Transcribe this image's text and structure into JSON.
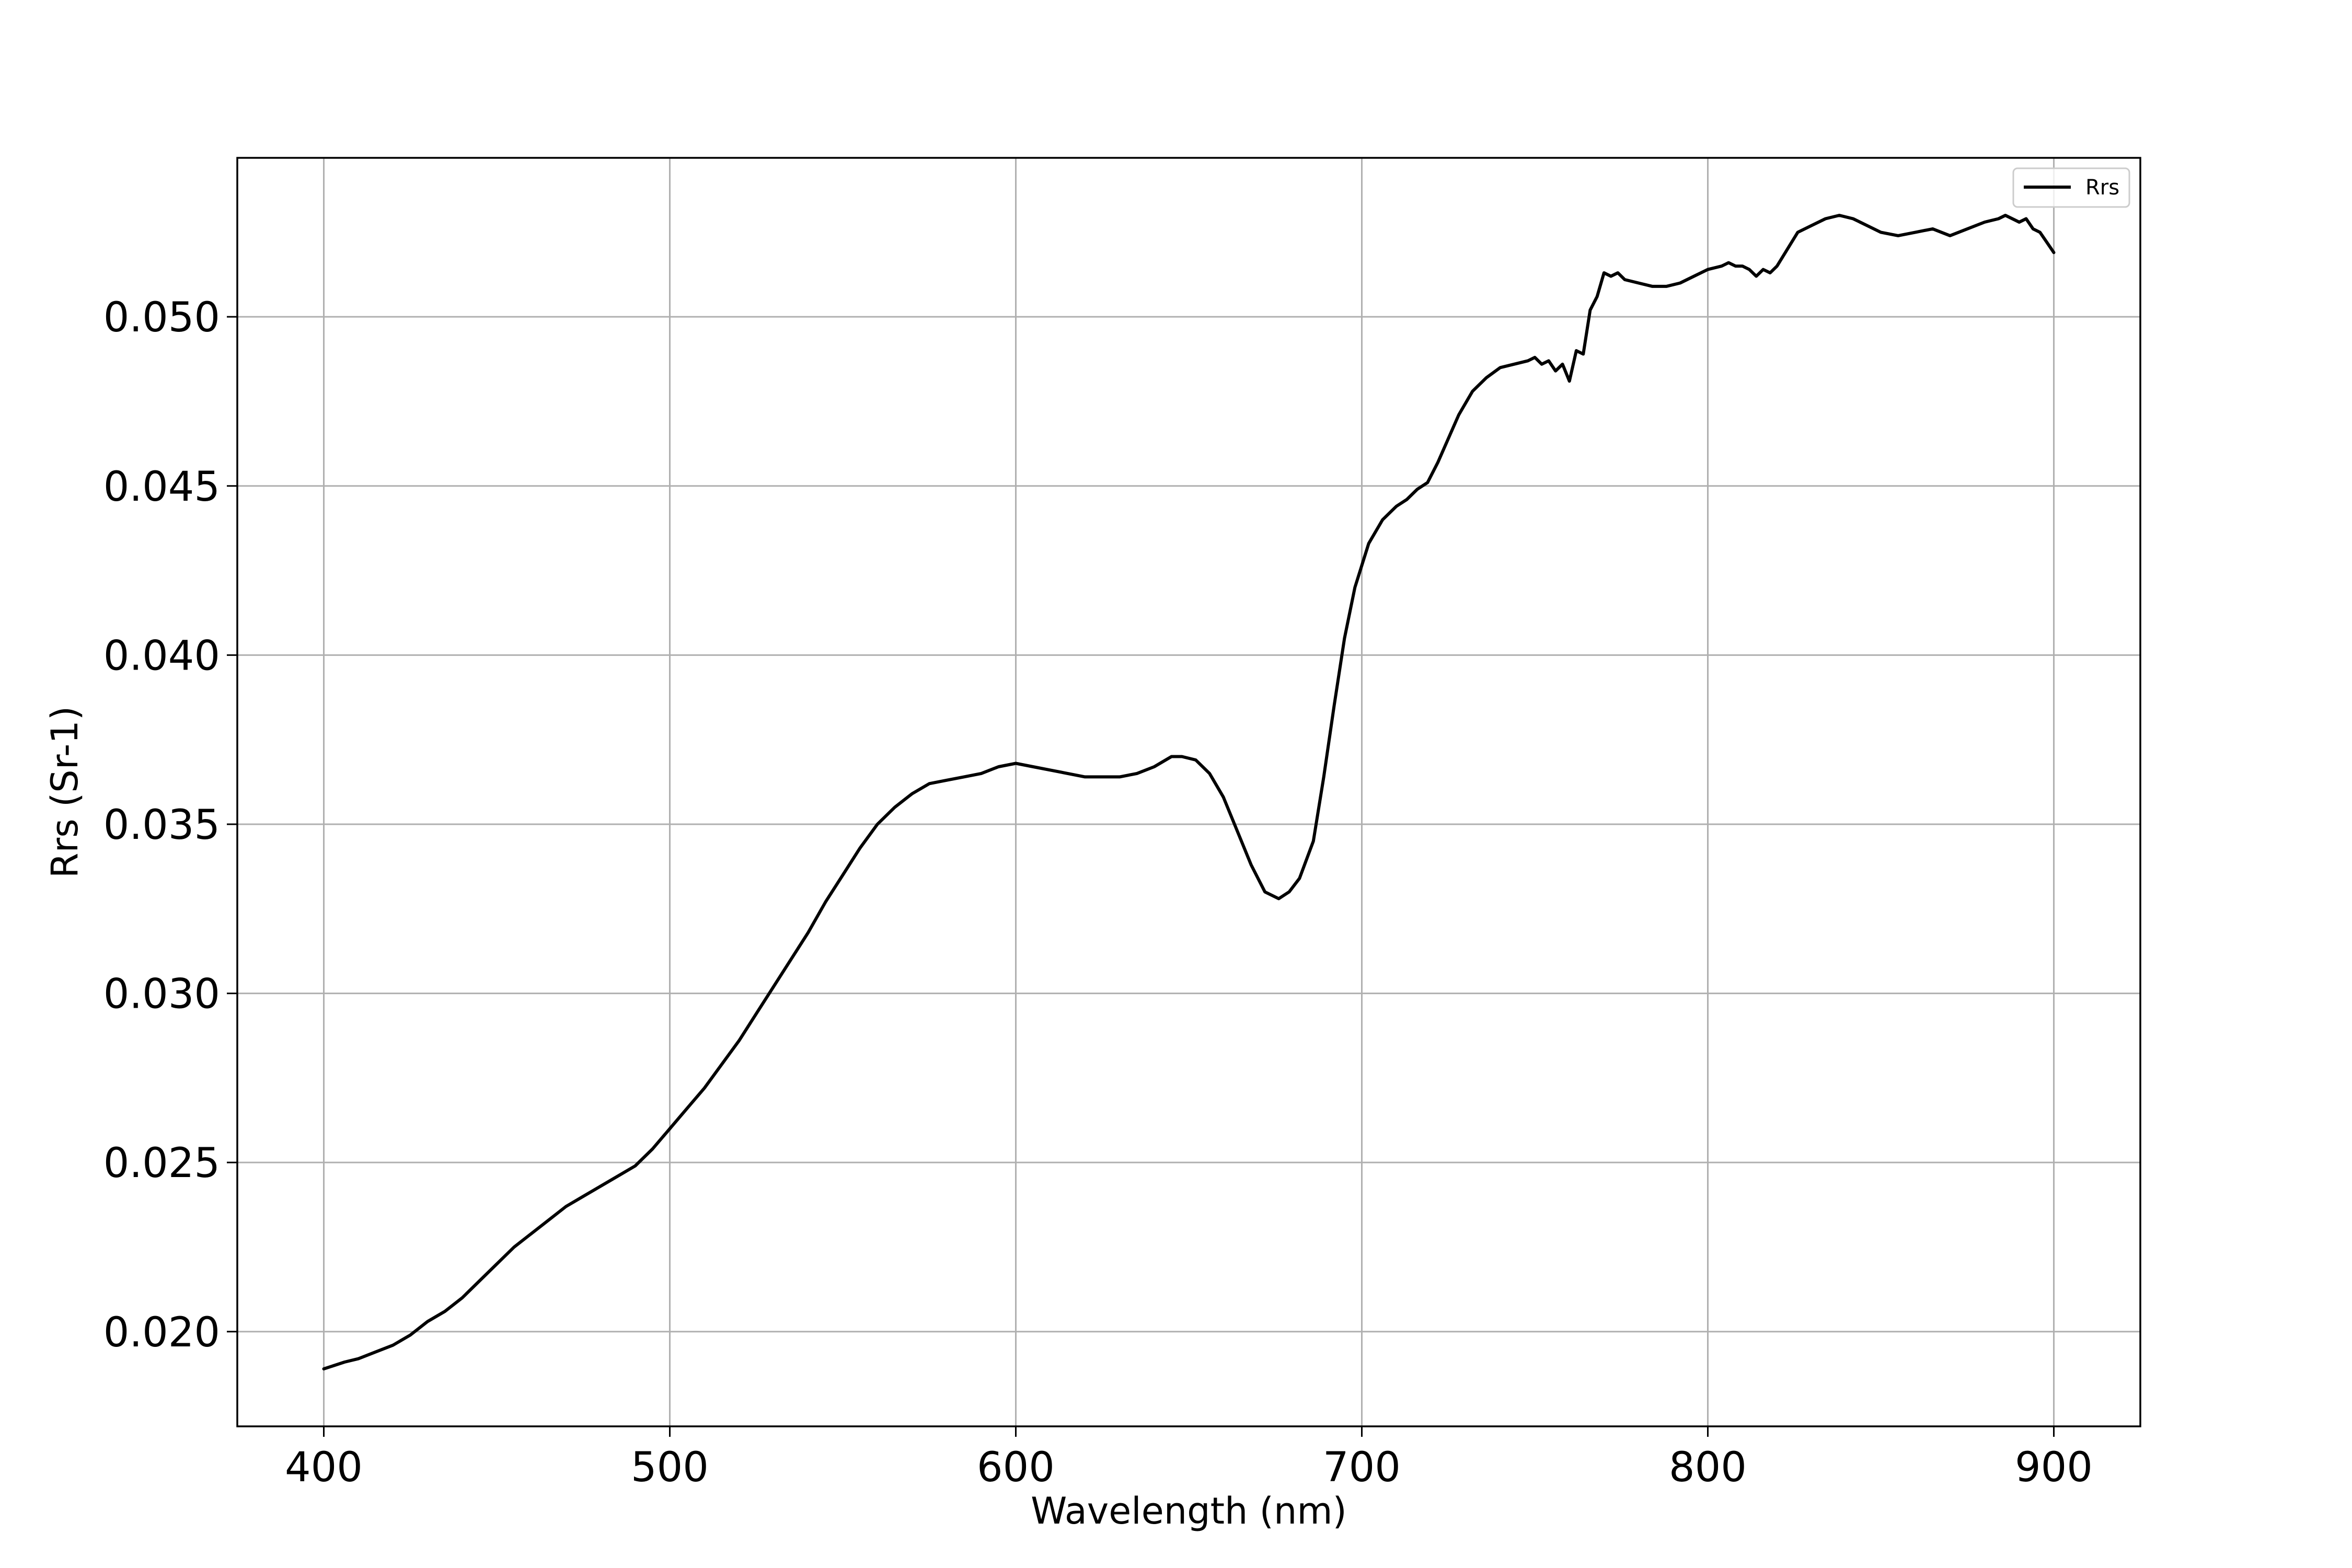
{
  "chart_data": {
    "type": "line",
    "title": "",
    "xlabel": "Wavelength (nm)",
    "ylabel": "Rrs (Sr-1)",
    "xlim": [
      375,
      925
    ],
    "ylim": [
      0.0172,
      0.0547
    ],
    "xticks": [
      400,
      500,
      600,
      700,
      800,
      900
    ],
    "xtick_labels": [
      "400",
      "500",
      "600",
      "700",
      "800",
      "900"
    ],
    "yticks": [
      0.02,
      0.025,
      0.03,
      0.035,
      0.04,
      0.045,
      0.05
    ],
    "ytick_labels": [
      "0.020",
      "0.025",
      "0.030",
      "0.035",
      "0.040",
      "0.045",
      "0.050"
    ],
    "grid": true,
    "legend_position": "upper right",
    "series": [
      {
        "name": "Rrs",
        "color": "#000000",
        "x": [
          400,
          403,
          406,
          410,
          415,
          420,
          425,
          430,
          435,
          440,
          445,
          450,
          455,
          460,
          465,
          470,
          475,
          480,
          485,
          490,
          495,
          500,
          505,
          510,
          515,
          520,
          525,
          530,
          535,
          540,
          545,
          550,
          555,
          560,
          565,
          570,
          575,
          580,
          585,
          590,
          595,
          600,
          605,
          610,
          615,
          620,
          625,
          630,
          635,
          640,
          645,
          648,
          652,
          656,
          660,
          664,
          668,
          672,
          676,
          679,
          682,
          686,
          689,
          692,
          695,
          698,
          702,
          706,
          710,
          713,
          716,
          719,
          722,
          725,
          728,
          732,
          736,
          740,
          744,
          748,
          750,
          752,
          754,
          756,
          758,
          760,
          762,
          764,
          766,
          768,
          770,
          772,
          774,
          776,
          780,
          784,
          788,
          792,
          796,
          800,
          804,
          806,
          808,
          810,
          812,
          814,
          816,
          818,
          820,
          823,
          826,
          830,
          834,
          838,
          842,
          846,
          850,
          855,
          860,
          865,
          870,
          875,
          880,
          884,
          886,
          888,
          890,
          892,
          894,
          896,
          898,
          900
        ],
        "values": [
          0.0189,
          0.019,
          0.0191,
          0.0192,
          0.0194,
          0.0196,
          0.0199,
          0.0203,
          0.0206,
          0.021,
          0.0215,
          0.022,
          0.0225,
          0.0229,
          0.0233,
          0.0237,
          0.024,
          0.0243,
          0.0246,
          0.0249,
          0.0254,
          0.026,
          0.0266,
          0.0272,
          0.0279,
          0.0286,
          0.0294,
          0.0302,
          0.031,
          0.0318,
          0.0327,
          0.0335,
          0.0343,
          0.035,
          0.0355,
          0.0359,
          0.0362,
          0.0363,
          0.0364,
          0.0365,
          0.0367,
          0.0368,
          0.0367,
          0.0366,
          0.0365,
          0.0364,
          0.0364,
          0.0364,
          0.0365,
          0.0367,
          0.037,
          0.037,
          0.0369,
          0.0365,
          0.0358,
          0.0348,
          0.0338,
          0.033,
          0.0328,
          0.033,
          0.0334,
          0.0345,
          0.0364,
          0.0385,
          0.0405,
          0.042,
          0.0433,
          0.044,
          0.0444,
          0.0446,
          0.0449,
          0.0451,
          0.0457,
          0.0464,
          0.0471,
          0.0478,
          0.0482,
          0.0485,
          0.0486,
          0.0487,
          0.0488,
          0.0486,
          0.0487,
          0.0484,
          0.0486,
          0.0481,
          0.049,
          0.0489,
          0.0502,
          0.0506,
          0.0513,
          0.0512,
          0.0513,
          0.0511,
          0.051,
          0.0509,
          0.0509,
          0.051,
          0.0512,
          0.0514,
          0.0515,
          0.0516,
          0.0515,
          0.0515,
          0.0514,
          0.0512,
          0.0514,
          0.0513,
          0.0515,
          0.052,
          0.0525,
          0.0527,
          0.0529,
          0.053,
          0.0529,
          0.0527,
          0.0525,
          0.0524,
          0.0525,
          0.0526,
          0.0524,
          0.0526,
          0.0528,
          0.0529,
          0.053,
          0.0529,
          0.0528,
          0.0529,
          0.0526,
          0.0525,
          0.0522,
          0.0519
        ]
      }
    ]
  }
}
